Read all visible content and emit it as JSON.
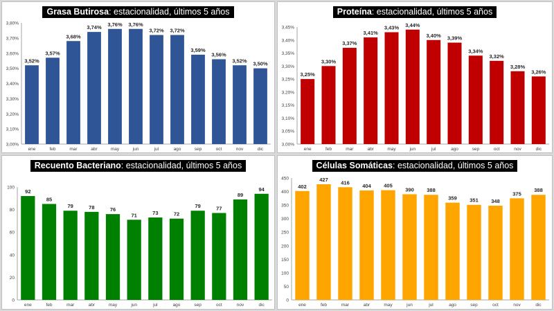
{
  "chart_data": [
    {
      "type": "bar",
      "title_bold": "Grasa Butirosa",
      "title_rest": ": estacionalidad, últimos 5 años",
      "categories": [
        "ene",
        "feb",
        "mar",
        "abr",
        "may",
        "jun",
        "jul",
        "ago",
        "sep",
        "oct",
        "nov",
        "dic"
      ],
      "values": [
        3.52,
        3.57,
        3.68,
        3.74,
        3.76,
        3.76,
        3.72,
        3.72,
        3.59,
        3.56,
        3.52,
        3.5
      ],
      "labels": [
        "3,52%",
        "3,57%",
        "3,68%",
        "3,74%",
        "3,76%",
        "3,76%",
        "3,72%",
        "3,72%",
        "3,59%",
        "3,56%",
        "3,52%",
        "3,50%"
      ],
      "ylim": [
        3.0,
        3.8
      ],
      "yticks": [
        3.0,
        3.1,
        3.2,
        3.3,
        3.4,
        3.5,
        3.6,
        3.7,
        3.8
      ],
      "ytick_labels": [
        "3,00%",
        "3,10%",
        "3,20%",
        "3,30%",
        "3,40%",
        "3,50%",
        "3,60%",
        "3,70%",
        "3,80%"
      ],
      "color": "#2f5597",
      "grid": false
    },
    {
      "type": "bar",
      "title_bold": "Proteína",
      "title_rest": ": estacionalidad, últimos 5 años",
      "categories": [
        "ene",
        "feb",
        "mar",
        "abr",
        "may",
        "jun",
        "jul",
        "ago",
        "sep",
        "oct",
        "nov",
        "dic"
      ],
      "values": [
        3.25,
        3.3,
        3.37,
        3.41,
        3.43,
        3.44,
        3.4,
        3.39,
        3.34,
        3.32,
        3.28,
        3.26
      ],
      "labels": [
        "3,25%",
        "3,30%",
        "3,37%",
        "3,41%",
        "3,43%",
        "3,44%",
        "3,40%",
        "3,39%",
        "3,34%",
        "3,32%",
        "3,28%",
        "3,26%"
      ],
      "ylim": [
        3.0,
        3.45
      ],
      "yticks": [
        3.0,
        3.05,
        3.1,
        3.15,
        3.2,
        3.25,
        3.3,
        3.35,
        3.4,
        3.45
      ],
      "ytick_labels": [
        "3,00%",
        "3,05%",
        "3,10%",
        "3,15%",
        "3,20%",
        "3,25%",
        "3,30%",
        "3,35%",
        "3,40%",
        "3,45%"
      ],
      "color": "#c00000",
      "grid": false
    },
    {
      "type": "bar",
      "title_bold": "Recuento Bacteriano",
      "title_rest": ": estacionalidad, últimos 5 años",
      "categories": [
        "ene",
        "feb",
        "mar",
        "abr",
        "may",
        "jun",
        "jul",
        "ago",
        "sep",
        "oct",
        "nov",
        "dic"
      ],
      "values": [
        92,
        85,
        79,
        78,
        76,
        71,
        73,
        72,
        79,
        77,
        89,
        94
      ],
      "labels": [
        "92",
        "85",
        "79",
        "78",
        "76",
        "71",
        "73",
        "72",
        "79",
        "77",
        "89",
        "94"
      ],
      "ylim": [
        0,
        100
      ],
      "yticks": [
        0,
        20,
        40,
        60,
        80,
        100
      ],
      "ytick_labels": [
        "0",
        "20",
        "40",
        "60",
        "80",
        "100"
      ],
      "color": "#008000",
      "grid": false
    },
    {
      "type": "bar",
      "title_bold": "Células Somáticas",
      "title_rest": ": estacionalidad, últimos 5 años",
      "categories": [
        "ene",
        "feb",
        "mar",
        "abr",
        "may",
        "jun",
        "jul",
        "ago",
        "sep",
        "oct",
        "nov",
        "dic"
      ],
      "values": [
        402,
        427,
        416,
        404,
        405,
        390,
        388,
        359,
        351,
        348,
        375,
        388
      ],
      "labels": [
        "402",
        "427",
        "416",
        "404",
        "405",
        "390",
        "388",
        "359",
        "351",
        "348",
        "375",
        "388"
      ],
      "ylim": [
        0,
        450
      ],
      "yticks": [
        0,
        50,
        100,
        150,
        200,
        250,
        300,
        350,
        400,
        450
      ],
      "ytick_labels": [
        "0",
        "50",
        "100",
        "150",
        "200",
        "250",
        "300",
        "350",
        "400",
        "450"
      ],
      "color": "#ffa500",
      "grid": false
    }
  ]
}
